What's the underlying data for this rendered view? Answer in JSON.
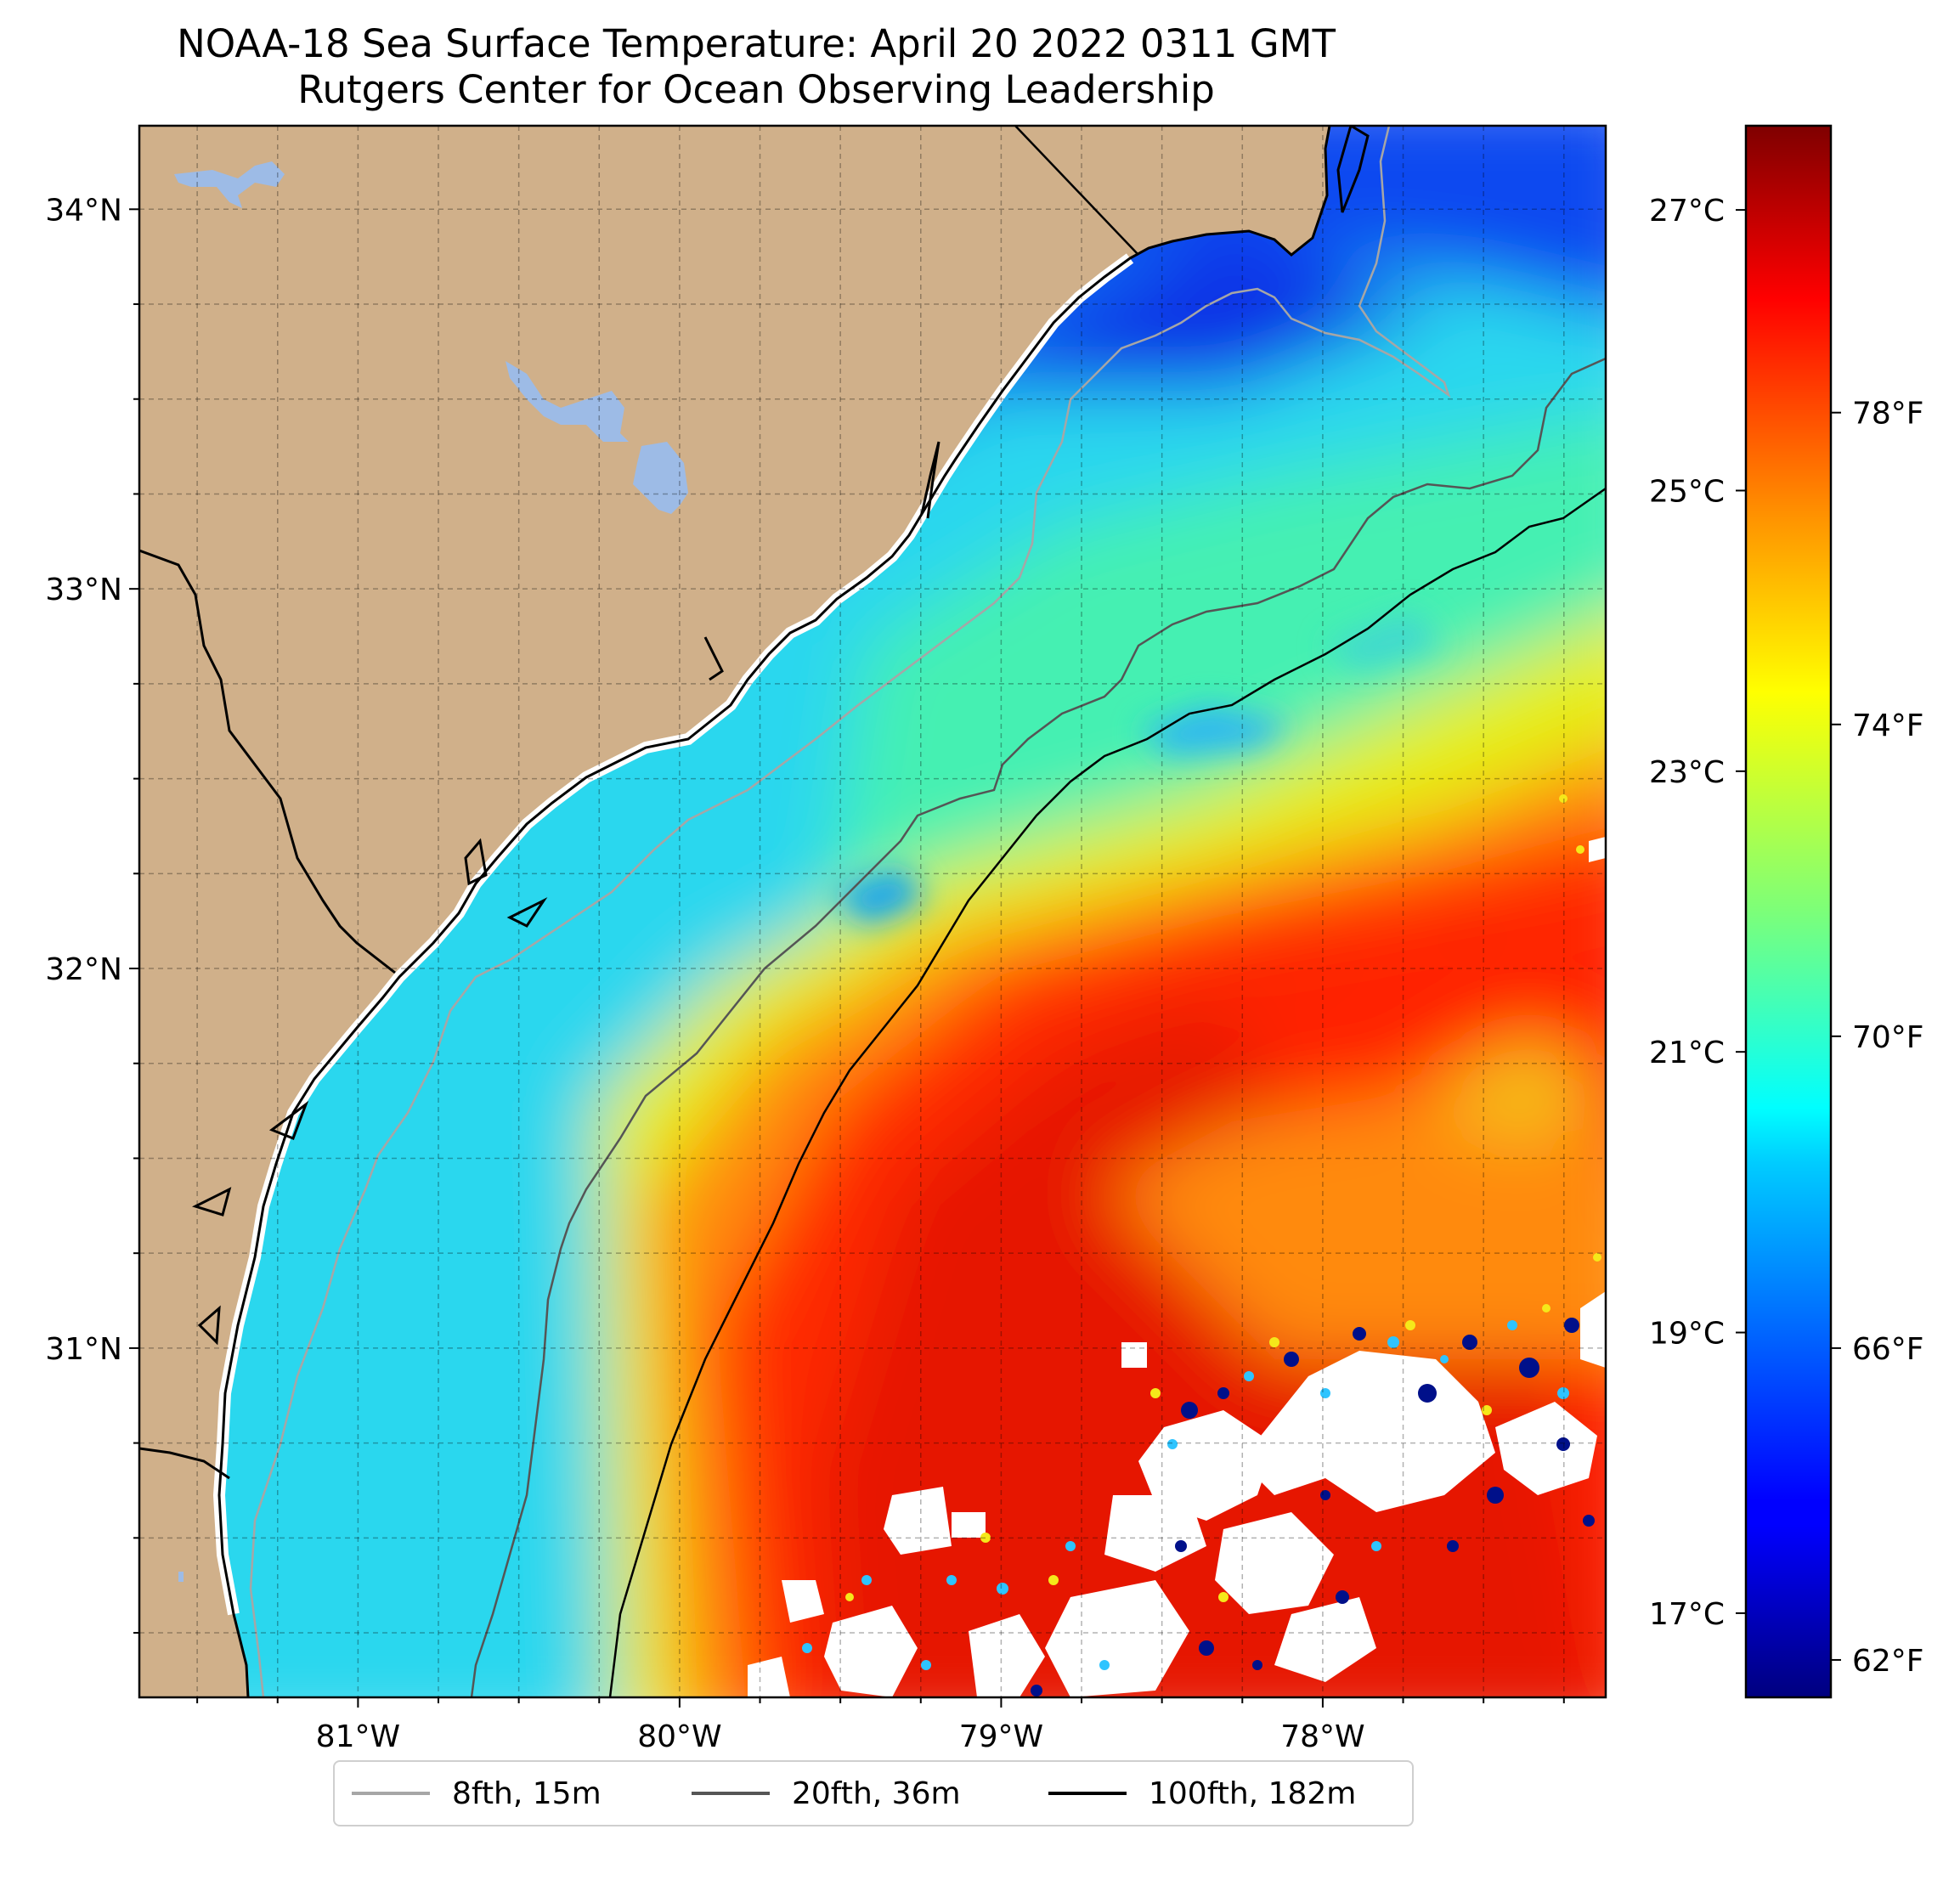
{
  "title": {
    "line1": "NOAA-18 Sea Surface Temperature: April 20 2022 0311 GMT",
    "line2": "Rutgers Center for Ocean Observing Leadership"
  },
  "map": {
    "lon_range": [
      -81.68,
      -77.12
    ],
    "lat_range": [
      30.08,
      34.22
    ],
    "lon_ticks": [
      {
        "value": -81,
        "label": "81°W"
      },
      {
        "value": -80,
        "label": "80°W"
      },
      {
        "value": -79,
        "label": "79°W"
      },
      {
        "value": -78,
        "label": "78°W"
      }
    ],
    "lat_ticks": [
      {
        "value": 31,
        "label": "31°N"
      },
      {
        "value": 32,
        "label": "32°N"
      },
      {
        "value": 33,
        "label": "33°N"
      },
      {
        "value": 34,
        "label": "34°N"
      }
    ],
    "grid_lines": "dashed, every 0.25°",
    "land_color": "#d0b08a",
    "lake_color": "#9dbbe6",
    "no_data_color": "#ffffff"
  },
  "colorbar": {
    "colormap": "jet",
    "celsius_range": [
      16.4,
      27.6
    ],
    "celsius_ticks": [
      {
        "value": 17,
        "label": "17°C"
      },
      {
        "value": 19,
        "label": "19°C"
      },
      {
        "value": 21,
        "label": "21°C"
      },
      {
        "value": 23,
        "label": "23°C"
      },
      {
        "value": 25,
        "label": "25°C"
      },
      {
        "value": 27,
        "label": "27°C"
      }
    ],
    "fahrenheit_ticks": [
      {
        "value": 62,
        "label": "62°F"
      },
      {
        "value": 66,
        "label": "66°F"
      },
      {
        "value": 70,
        "label": "70°F"
      },
      {
        "value": 74,
        "label": "74°F"
      },
      {
        "value": 78,
        "label": "78°F"
      }
    ]
  },
  "legend": {
    "items": [
      {
        "label": "8fth, 15m",
        "color": "#a6a6a6"
      },
      {
        "label": "20fth, 36m",
        "color": "#555555"
      },
      {
        "label": "100fth, 182m",
        "color": "#000000"
      }
    ]
  }
}
